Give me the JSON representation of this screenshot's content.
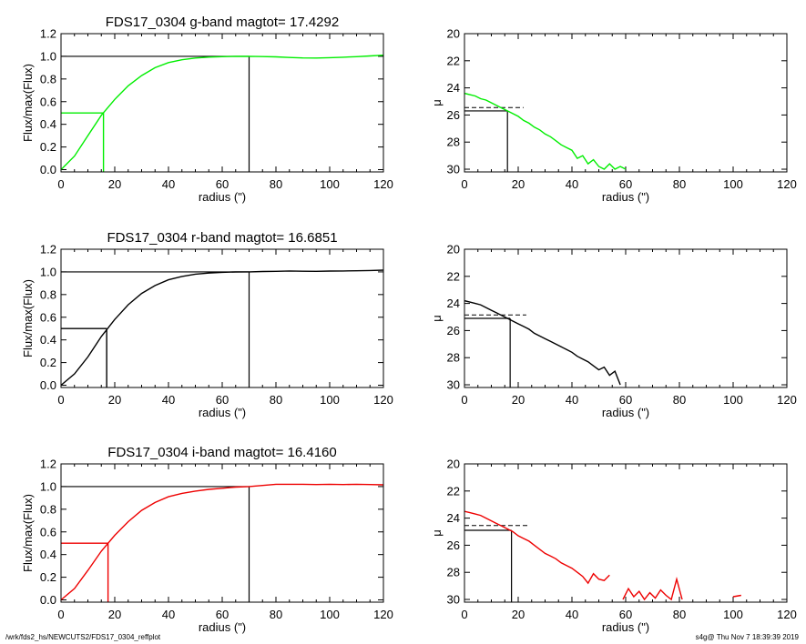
{
  "chart_data": [
    {
      "type": "line",
      "title": "FDS17_0304 g-band  magtot=      17.4292",
      "xlabel": "radius (\")",
      "ylabel": "Flux/max(Flux)",
      "xlim": [
        0,
        120
      ],
      "ylim": [
        -0.02,
        1.2
      ],
      "xticks": [
        "0",
        "20",
        "40",
        "60",
        "80",
        "100",
        "120"
      ],
      "yticks": [
        "0.0",
        "0.2",
        "0.4",
        "0.6",
        "0.8",
        "1.0",
        "1.2"
      ],
      "color": "#00ee00",
      "series": [
        {
          "x": [
            0,
            5,
            10,
            15,
            20,
            25,
            30,
            35,
            40,
            45,
            50,
            55,
            60,
            65,
            70,
            75,
            80,
            85,
            90,
            95,
            100,
            105,
            110,
            115,
            120
          ],
          "y": [
            0.0,
            0.12,
            0.3,
            0.48,
            0.62,
            0.74,
            0.83,
            0.9,
            0.945,
            0.97,
            0.985,
            0.993,
            0.997,
            0.999,
            1.0,
            0.998,
            0.995,
            0.99,
            0.986,
            0.985,
            0.988,
            0.992,
            0.997,
            1.003,
            1.01
          ]
        }
      ],
      "reference_lines": {
        "r_half": 15.8,
        "half_level": 0.5,
        "r_total": 70.0,
        "total_level": 1.0
      }
    },
    {
      "type": "line",
      "title": "",
      "xlabel": "radius (\")",
      "ylabel": "μ",
      "xlim": [
        0,
        120
      ],
      "ylim": [
        30.2,
        20
      ],
      "xticks": [
        "0",
        "20",
        "40",
        "60",
        "80",
        "100",
        "120"
      ],
      "yticks": [
        "20",
        "22",
        "24",
        "26",
        "28",
        "30"
      ],
      "color": "#00ee00",
      "series": [
        {
          "x": [
            0,
            2,
            4,
            6,
            8,
            10,
            12,
            14,
            16,
            18,
            20,
            22,
            24,
            26,
            28,
            30,
            32,
            34,
            36,
            38,
            40,
            42,
            44,
            46,
            48,
            50,
            52,
            54,
            56,
            58,
            60
          ],
          "y": [
            24.4,
            24.5,
            24.6,
            24.8,
            24.9,
            25.1,
            25.3,
            25.5,
            25.7,
            25.9,
            26.1,
            26.4,
            26.6,
            26.9,
            27.1,
            27.4,
            27.6,
            27.9,
            28.2,
            28.4,
            28.6,
            29.2,
            29.0,
            29.6,
            29.3,
            29.8,
            30.0,
            29.6,
            30.0,
            29.8,
            30.0
          ]
        }
      ],
      "reference_lines": {
        "r_half": 16.0,
        "mu_half": 25.7,
        "mu_mean": 25.45
      }
    },
    {
      "type": "line",
      "title": "FDS17_0304 r-band  magtot=      16.6851",
      "xlabel": "radius (\")",
      "ylabel": "Flux/max(Flux)",
      "xlim": [
        0,
        120
      ],
      "ylim": [
        -0.02,
        1.2
      ],
      "xticks": [
        "0",
        "20",
        "40",
        "60",
        "80",
        "100",
        "120"
      ],
      "yticks": [
        "0.0",
        "0.2",
        "0.4",
        "0.6",
        "0.8",
        "1.0",
        "1.2"
      ],
      "color": "#000000",
      "series": [
        {
          "x": [
            0,
            5,
            10,
            15,
            20,
            25,
            30,
            35,
            40,
            45,
            50,
            55,
            60,
            65,
            70,
            75,
            80,
            85,
            90,
            95,
            100,
            105,
            110,
            115,
            120
          ],
          "y": [
            0.0,
            0.1,
            0.25,
            0.43,
            0.58,
            0.71,
            0.81,
            0.88,
            0.93,
            0.96,
            0.98,
            0.99,
            0.996,
            0.999,
            1.0,
            1.003,
            1.005,
            1.008,
            1.006,
            1.005,
            1.007,
            1.008,
            1.01,
            1.012,
            1.015
          ]
        }
      ],
      "reference_lines": {
        "r_half": 17.0,
        "half_level": 0.5,
        "r_total": 70.0,
        "total_level": 1.0
      }
    },
    {
      "type": "line",
      "title": "",
      "xlabel": "radius (\")",
      "ylabel": "μ",
      "xlim": [
        0,
        120
      ],
      "ylim": [
        30.2,
        20
      ],
      "xticks": [
        "0",
        "20",
        "40",
        "60",
        "80",
        "100",
        "120"
      ],
      "yticks": [
        "20",
        "22",
        "24",
        "26",
        "28",
        "30"
      ],
      "color": "#000000",
      "series": [
        {
          "x": [
            0,
            2,
            4,
            6,
            8,
            10,
            12,
            14,
            16,
            18,
            20,
            22,
            24,
            26,
            28,
            30,
            32,
            34,
            36,
            38,
            40,
            42,
            44,
            46,
            48,
            50,
            52,
            54,
            56,
            58
          ],
          "y": [
            23.8,
            23.9,
            24.0,
            24.1,
            24.3,
            24.5,
            24.7,
            24.9,
            25.1,
            25.3,
            25.5,
            25.7,
            25.9,
            26.2,
            26.4,
            26.6,
            26.8,
            27.0,
            27.2,
            27.4,
            27.6,
            27.9,
            28.1,
            28.3,
            28.6,
            28.9,
            28.7,
            29.3,
            29.0,
            30.0
          ]
        }
      ],
      "reference_lines": {
        "r_half": 17.0,
        "mu_half": 25.1,
        "mu_mean": 24.85
      }
    },
    {
      "type": "line",
      "title": "FDS17_0304 i-band  magtot=      16.4160",
      "xlabel": "radius (\")",
      "ylabel": "Flux/max(Flux)",
      "xlim": [
        0,
        120
      ],
      "ylim": [
        -0.02,
        1.2
      ],
      "xticks": [
        "0",
        "20",
        "40",
        "60",
        "80",
        "100",
        "120"
      ],
      "yticks": [
        "0.0",
        "0.2",
        "0.4",
        "0.6",
        "0.8",
        "1.0",
        "1.2"
      ],
      "color": "#ee0000",
      "series": [
        {
          "x": [
            0,
            5,
            10,
            15,
            20,
            25,
            30,
            35,
            40,
            45,
            50,
            55,
            60,
            65,
            70,
            75,
            80,
            85,
            90,
            95,
            100,
            105,
            110,
            115,
            120
          ],
          "y": [
            0.0,
            0.1,
            0.26,
            0.43,
            0.57,
            0.69,
            0.79,
            0.86,
            0.91,
            0.94,
            0.96,
            0.975,
            0.985,
            0.995,
            1.0,
            1.01,
            1.02,
            1.02,
            1.02,
            1.018,
            1.02,
            1.018,
            1.02,
            1.018,
            1.015
          ]
        }
      ],
      "reference_lines": {
        "r_half": 17.5,
        "half_level": 0.5,
        "r_total": 70.0,
        "total_level": 1.0
      }
    },
    {
      "type": "line",
      "title": "",
      "xlabel": "radius (\")",
      "ylabel": "μ",
      "xlim": [
        0,
        120
      ],
      "ylim": [
        30.2,
        20
      ],
      "xticks": [
        "0",
        "20",
        "40",
        "60",
        "80",
        "100",
        "120"
      ],
      "yticks": [
        "20",
        "22",
        "24",
        "26",
        "28",
        "30"
      ],
      "color": "#ee0000",
      "series": [
        {
          "x": [
            0,
            2,
            4,
            6,
            8,
            10,
            12,
            14,
            16,
            18,
            20,
            22,
            24,
            26,
            28,
            30,
            32,
            34,
            36,
            38,
            40,
            42,
            44,
            46,
            48,
            50,
            52,
            54
          ],
          "y": [
            23.5,
            23.6,
            23.7,
            23.8,
            24.0,
            24.2,
            24.4,
            24.6,
            24.8,
            25.0,
            25.3,
            25.5,
            25.7,
            26.0,
            26.3,
            26.6,
            26.8,
            27.0,
            27.3,
            27.5,
            27.7,
            28.0,
            28.3,
            28.8,
            28.1,
            28.5,
            28.6,
            28.2
          ]
        },
        {
          "x": [
            59,
            61,
            63,
            65,
            67,
            69,
            71,
            73,
            75,
            77,
            79,
            81
          ],
          "y": [
            30.0,
            29.2,
            29.8,
            29.4,
            30.0,
            29.5,
            29.9,
            29.3,
            29.7,
            30.0,
            28.5,
            30.0
          ]
        },
        {
          "x": [
            100,
            103
          ],
          "y": [
            29.8,
            29.7
          ]
        }
      ],
      "reference_lines": {
        "r_half": 17.5,
        "mu_half": 24.9,
        "mu_mean": 24.55
      }
    }
  ],
  "footer": {
    "left": "/wrk/fds2_hs/NEWCUTS2/FDS17_0304_reffplot",
    "right": "s4g@  Thu Nov  7 18:39:39 2019"
  }
}
